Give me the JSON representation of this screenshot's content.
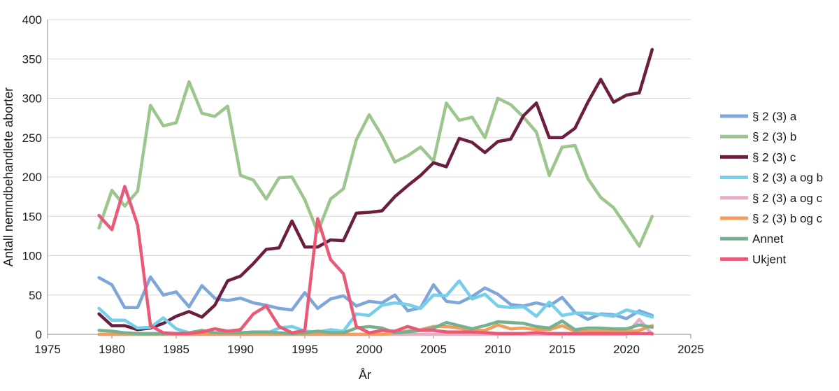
{
  "chart_data": {
    "type": "line",
    "xlabel": "År",
    "ylabel": "Antall nemndbehandlete aborter",
    "xlim": [
      1975,
      2025
    ],
    "ylim": [
      0,
      400
    ],
    "xticks": [
      1975,
      1980,
      1985,
      1990,
      1995,
      2000,
      2005,
      2010,
      2015,
      2020,
      2025
    ],
    "yticks": [
      0,
      50,
      100,
      150,
      200,
      250,
      300,
      350,
      400
    ],
    "grid": "horizontal",
    "legend_position": "right",
    "x": [
      1979,
      1980,
      1981,
      1982,
      1983,
      1984,
      1985,
      1986,
      1987,
      1988,
      1989,
      1990,
      1991,
      1992,
      1993,
      1994,
      1995,
      1996,
      1997,
      1998,
      1999,
      2000,
      2001,
      2002,
      2003,
      2004,
      2005,
      2006,
      2007,
      2008,
      2009,
      2010,
      2011,
      2012,
      2013,
      2014,
      2015,
      2016,
      2017,
      2018,
      2019,
      2020,
      2021,
      2022
    ],
    "series": [
      {
        "name": "§ 2 (3) a",
        "color": "#7da7d9",
        "values": [
          72,
          63,
          34,
          34,
          73,
          50,
          54,
          35,
          62,
          46,
          43,
          46,
          40,
          37,
          33,
          31,
          53,
          33,
          45,
          49,
          36,
          42,
          40,
          50,
          30,
          34,
          63,
          42,
          40,
          48,
          59,
          51,
          38,
          36,
          40,
          36,
          47,
          28,
          19,
          26,
          25,
          20,
          30,
          24
        ]
      },
      {
        "name": "§ 2 (3) b",
        "color": "#9cc68d",
        "values": [
          135,
          183,
          163,
          182,
          291,
          265,
          269,
          321,
          281,
          277,
          290,
          202,
          196,
          172,
          199,
          200,
          171,
          130,
          172,
          185,
          247,
          279,
          252,
          219,
          227,
          238,
          220,
          294,
          272,
          276,
          250,
          300,
          292,
          276,
          257,
          202,
          238,
          240,
          198,
          174,
          161,
          137,
          112,
          150
        ]
      },
      {
        "name": "§ 2 (3) c",
        "color": "#6b1e3f",
        "values": [
          26,
          11,
          11,
          6,
          8,
          14,
          23,
          29,
          22,
          37,
          68,
          74,
          90,
          108,
          110,
          144,
          111,
          111,
          120,
          119,
          154,
          155,
          157,
          175,
          189,
          202,
          218,
          213,
          249,
          244,
          231,
          245,
          248,
          278,
          294,
          250,
          250,
          262,
          295,
          324,
          295,
          304,
          307,
          362
        ]
      },
      {
        "name": "§ 2 (3) a og b",
        "color": "#76cfea",
        "values": [
          33,
          18,
          18,
          8,
          9,
          21,
          7,
          2,
          1,
          1,
          1,
          1,
          1,
          1,
          8,
          10,
          4,
          3,
          6,
          4,
          26,
          24,
          37,
          40,
          38,
          33,
          50,
          49,
          68,
          45,
          51,
          36,
          34,
          35,
          23,
          41,
          24,
          27,
          27,
          25,
          23,
          31,
          27,
          22
        ]
      },
      {
        "name": "§ 2 (3) a og c",
        "color": "#e3aec6",
        "values": [
          0,
          0,
          0,
          0,
          0,
          0,
          0,
          0,
          0,
          0,
          0,
          0,
          0,
          0,
          0,
          0,
          0,
          0,
          0,
          0,
          0,
          0,
          0,
          0,
          0,
          0,
          0,
          0,
          0,
          0,
          0,
          0,
          0,
          0,
          0,
          0,
          0,
          0,
          0,
          0,
          0,
          0,
          19,
          0
        ]
      },
      {
        "name": "§ 2 (3) b og c",
        "color": "#f39c5c",
        "values": [
          0,
          0,
          0,
          0,
          0,
          0,
          0,
          0,
          0,
          0,
          0,
          0,
          0,
          0,
          0,
          0,
          0,
          0,
          0,
          0,
          0,
          0,
          0,
          2,
          4,
          6,
          10,
          10,
          8,
          5,
          5,
          12,
          7,
          8,
          6,
          6,
          11,
          4,
          4,
          4,
          4,
          3,
          5,
          11
        ]
      },
      {
        "name": "Annet",
        "color": "#76b18f",
        "values": [
          5,
          4,
          2,
          1,
          1,
          1,
          1,
          2,
          5,
          2,
          2,
          2,
          3,
          3,
          2,
          1,
          2,
          4,
          2,
          2,
          8,
          10,
          8,
          2,
          3,
          5,
          8,
          15,
          11,
          7,
          11,
          16,
          15,
          14,
          10,
          8,
          17,
          6,
          8,
          8,
          7,
          7,
          12,
          9
        ]
      },
      {
        "name": "Ukjent",
        "color": "#e85a78",
        "values": [
          151,
          133,
          188,
          139,
          11,
          2,
          1,
          1,
          3,
          7,
          4,
          6,
          26,
          36,
          10,
          2,
          5,
          147,
          95,
          77,
          10,
          2,
          5,
          4,
          10,
          5,
          5,
          3,
          3,
          3,
          2,
          1,
          1,
          1,
          2,
          1,
          1,
          1,
          1,
          1,
          1,
          1,
          1,
          1
        ]
      }
    ]
  }
}
